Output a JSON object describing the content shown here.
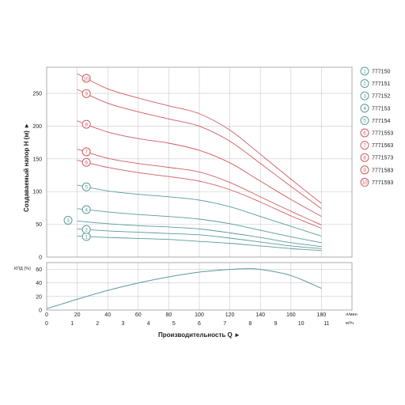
{
  "chart_data": [
    {
      "type": "line",
      "ylabel": "Создаваемый напор Н (м)",
      "xlim": [
        0,
        180
      ],
      "ylim": [
        0,
        290
      ],
      "yticks": [
        0,
        50,
        100,
        150,
        200,
        250
      ],
      "x": [
        20,
        40,
        60,
        80,
        100,
        120,
        140,
        160,
        180
      ],
      "grid": true,
      "legend_position": "right",
      "series": [
        {
          "name": "777150",
          "label": "1",
          "color": "#5a9a9a",
          "label_x": 26,
          "values": [
            32,
            30,
            28.5,
            27,
            24,
            21,
            17,
            13,
            10
          ]
        },
        {
          "name": "777151",
          "label": "2",
          "color": "#5a9a9a",
          "label_x": 26,
          "values": [
            43,
            40,
            38,
            36,
            34,
            29,
            23,
            17,
            13
          ]
        },
        {
          "name": "777152",
          "label": "3",
          "color": "#5a9a9a",
          "label_x": 14,
          "values": [
            55,
            51,
            48,
            46,
            43,
            37,
            30,
            22,
            16
          ]
        },
        {
          "name": "777153",
          "label": "4",
          "color": "#5a9a9a",
          "label_x": 26,
          "values": [
            74,
            69,
            65,
            62,
            58,
            51,
            41,
            31,
            22
          ]
        },
        {
          "name": "777154",
          "label": "5",
          "color": "#5a9a9a",
          "label_x": 26,
          "values": [
            110,
            101,
            96,
            92,
            87,
            77,
            62,
            47,
            32
          ]
        },
        {
          "name": "7771553",
          "label": "6",
          "color": "#d05a60",
          "label_x": 26,
          "values": [
            148,
            137,
            129,
            123,
            116,
            103,
            84,
            63,
            44
          ]
        },
        {
          "name": "7771563",
          "label": "7",
          "color": "#d05a60",
          "label_x": 26,
          "values": [
            165,
            151,
            143,
            137,
            130,
            114,
            92,
            70,
            49
          ]
        },
        {
          "name": "7771573",
          "label": "8",
          "color": "#d05a60",
          "label_x": 26,
          "values": [
            208,
            191,
            181,
            174,
            163,
            144,
            116,
            88,
            62
          ]
        },
        {
          "name": "7771583",
          "label": "9",
          "color": "#d05a60",
          "label_x": 26,
          "values": [
            256,
            235,
            222,
            211,
            200,
            177,
            143,
            108,
            74
          ]
        },
        {
          "name": "7771593",
          "label": "10",
          "color": "#d05a60",
          "label_x": 26,
          "values": [
            280,
            257,
            243,
            231,
            219,
            194,
            157,
            119,
            82
          ]
        }
      ]
    },
    {
      "type": "line",
      "ylabel": "КПД (%)",
      "xlabel": "Производительность Q",
      "ylim": [
        0,
        70
      ],
      "yticks": [
        0,
        20,
        40,
        60
      ],
      "x_ticks_lpm": [
        0,
        20,
        40,
        60,
        80,
        100,
        120,
        140,
        160,
        180
      ],
      "x_unit_lpm": "л/мин",
      "x_ticks_m3h": [
        0,
        1,
        2,
        3,
        4,
        5,
        6,
        7,
        8,
        9,
        10,
        11
      ],
      "x_unit_m3h": "м³/ч",
      "grid": true,
      "series": [
        {
          "color": "#5a9a9a",
          "x": [
            0,
            10,
            20,
            40,
            60,
            80,
            100,
            120,
            130,
            140,
            160,
            180
          ],
          "values": [
            2,
            9,
            16,
            29,
            40,
            49,
            56,
            60,
            61,
            60,
            51,
            32
          ]
        }
      ]
    }
  ],
  "colors": {
    "teal": "#5a9a9a",
    "red": "#d05a60",
    "grid": "#c9c9c9",
    "frame": "#9a9a9a"
  },
  "arrow_glyph": "►"
}
